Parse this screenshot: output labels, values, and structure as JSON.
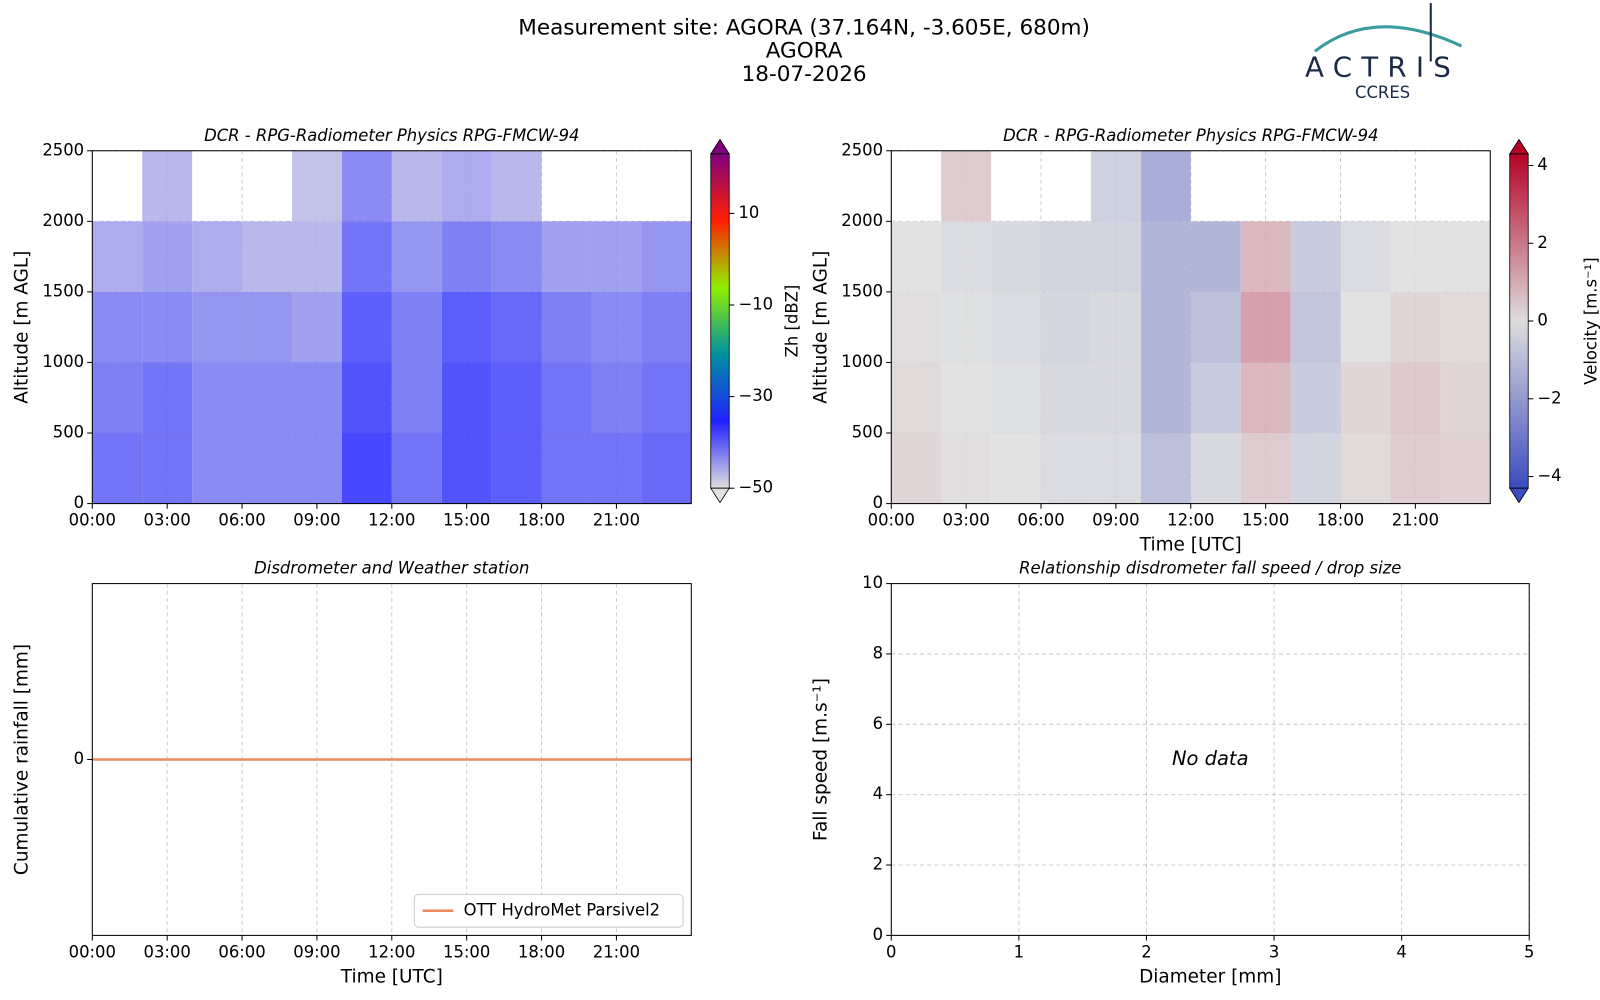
{
  "header": {
    "lines": [
      "Measurement site: AGORA (37.164N, -3.605E, 680m)",
      "AGORA",
      "18-07-2026"
    ],
    "logo": "ACTRIS",
    "logo_sub": "CCRES"
  },
  "chart_data": [
    {
      "type": "heatmap",
      "title": "DCR - RPG-Radiometer Physics RPG-FMCW-94",
      "ylabel": "Altitude [m AGL]",
      "x": [
        1,
        3,
        5,
        7,
        9,
        11,
        13,
        15,
        17,
        19,
        21,
        23
      ],
      "y": [
        250,
        750,
        1250,
        1750,
        2250
      ],
      "values": [
        [
          -40,
          -40,
          -42,
          -42,
          -42,
          -36,
          -40,
          -37,
          -38,
          -40,
          -40,
          -39
        ],
        [
          -41,
          -40,
          -42,
          -42,
          -42,
          -37,
          -41,
          -37,
          -38,
          -40,
          -41,
          -40
        ],
        [
          -42,
          -42,
          -43,
          -43,
          -44,
          -38,
          -41,
          -38,
          -39,
          -41,
          -42,
          -41
        ],
        [
          -45,
          -44,
          -45,
          -46,
          -46,
          -40,
          -43,
          -41,
          -42,
          -44,
          -44,
          -43
        ],
        [
          null,
          -46,
          null,
          null,
          -47,
          -42,
          -46,
          -45,
          -46,
          null,
          null,
          null
        ]
      ],
      "xlim": [
        0,
        24
      ],
      "xticks": [
        {
          "value": 0,
          "label": "00:00"
        },
        {
          "value": 3,
          "label": "03:00"
        },
        {
          "value": 6,
          "label": "06:00"
        },
        {
          "value": 9,
          "label": "09:00"
        },
        {
          "value": 12,
          "label": "12:00"
        },
        {
          "value": 15,
          "label": "15:00"
        },
        {
          "value": 18,
          "label": "18:00"
        },
        {
          "value": 21,
          "label": "21:00"
        }
      ],
      "ylim": [
        0,
        2500
      ],
      "yticks": [
        0,
        500,
        1000,
        1500,
        2000,
        2500
      ],
      "clim": [
        -50,
        23
      ],
      "cticks": [
        {
          "value": -50,
          "label": "−50"
        },
        {
          "value": -30,
          "label": "−30"
        },
        {
          "value": -10,
          "label": "−10"
        },
        10
      ],
      "clabel": "Zh [dBZ]",
      "colormap": [
        "#e0e0e0",
        "#2020ff",
        "#0090a0",
        "#90f000",
        "#ff2000",
        "#800080"
      ],
      "grid": true
    },
    {
      "type": "heatmap",
      "title": "DCR - RPG-Radiometer Physics RPG-FMCW-94",
      "xlabel": "Time [UTC]",
      "ylabel": "Altitude [m AGL]",
      "x": [
        1,
        3,
        5,
        7,
        9,
        11,
        13,
        15,
        17,
        19,
        21,
        23
      ],
      "y": [
        250,
        750,
        1250,
        1750,
        2250
      ],
      "values": [
        [
          0.3,
          0.1,
          0,
          -0.2,
          -0.2,
          -1.2,
          -0.3,
          0.5,
          -0.5,
          0.2,
          0.5,
          0.4
        ],
        [
          0.2,
          0,
          -0.1,
          -0.3,
          -0.3,
          -1.5,
          -0.8,
          1,
          -0.8,
          0.3,
          0.6,
          0.3
        ],
        [
          0.1,
          -0.1,
          -0.2,
          -0.4,
          -0.3,
          -1.5,
          -1.2,
          1.5,
          -1,
          0,
          0.3,
          0.2
        ],
        [
          0,
          -0.2,
          -0.3,
          -0.5,
          -0.5,
          -1.5,
          -1.5,
          1,
          -0.8,
          -0.2,
          0,
          0
        ],
        [
          null,
          0.5,
          null,
          null,
          -0.6,
          -1.8,
          null,
          null,
          null,
          null,
          null,
          null
        ]
      ],
      "xlim": [
        0,
        24
      ],
      "xticks": [
        {
          "value": 0,
          "label": "00:00"
        },
        {
          "value": 3,
          "label": "03:00"
        },
        {
          "value": 6,
          "label": "06:00"
        },
        {
          "value": 9,
          "label": "09:00"
        },
        {
          "value": 12,
          "label": "12:00"
        },
        {
          "value": 15,
          "label": "15:00"
        },
        {
          "value": 18,
          "label": "18:00"
        },
        {
          "value": 21,
          "label": "21:00"
        }
      ],
      "ylim": [
        0,
        2500
      ],
      "yticks": [
        0,
        500,
        1000,
        1500,
        2000,
        2500
      ],
      "clim": [
        -4.3,
        4.3
      ],
      "cticks": [
        {
          "value": -4,
          "label": "−4"
        },
        {
          "value": -2,
          "label": "−2"
        },
        0,
        2,
        4
      ],
      "clabel": "Velocity [m.s⁻¹]",
      "colormap": [
        "#3b4cc0",
        "#dddddd",
        "#b40426"
      ],
      "grid": true
    },
    {
      "type": "line",
      "title": "Disdrometer and Weather station",
      "xlabel": "Time [UTC]",
      "ylabel": "Cumulative rainfall [mm]",
      "x": [
        0,
        24
      ],
      "series": [
        {
          "name": "OTT HydroMet Parsivel2",
          "color": "#ee8a5c",
          "values": [
            0,
            0
          ]
        }
      ],
      "xlim": [
        0,
        24
      ],
      "xticks": [
        {
          "value": 0,
          "label": "00:00"
        },
        {
          "value": 3,
          "label": "03:00"
        },
        {
          "value": 6,
          "label": "06:00"
        },
        {
          "value": 9,
          "label": "09:00"
        },
        {
          "value": 12,
          "label": "12:00"
        },
        {
          "value": 15,
          "label": "15:00"
        },
        {
          "value": 18,
          "label": "18:00"
        },
        {
          "value": 21,
          "label": "21:00"
        }
      ],
      "ylim": [
        -0.055,
        0.055
      ],
      "yticks": [
        0
      ],
      "grid": true,
      "legend": "lower right"
    },
    {
      "type": "scatter",
      "title": "Relationship disdrometer fall speed / drop size",
      "xlabel": "Diameter [mm]",
      "ylabel": "Fall speed [m.s⁻¹]",
      "series": [],
      "annotation": "No data",
      "xlim": [
        0,
        5
      ],
      "xticks": [
        0,
        1,
        2,
        3,
        4,
        5
      ],
      "ylim": [
        0,
        10
      ],
      "yticks": [
        0,
        2,
        4,
        6,
        8,
        10
      ],
      "grid": true
    }
  ]
}
